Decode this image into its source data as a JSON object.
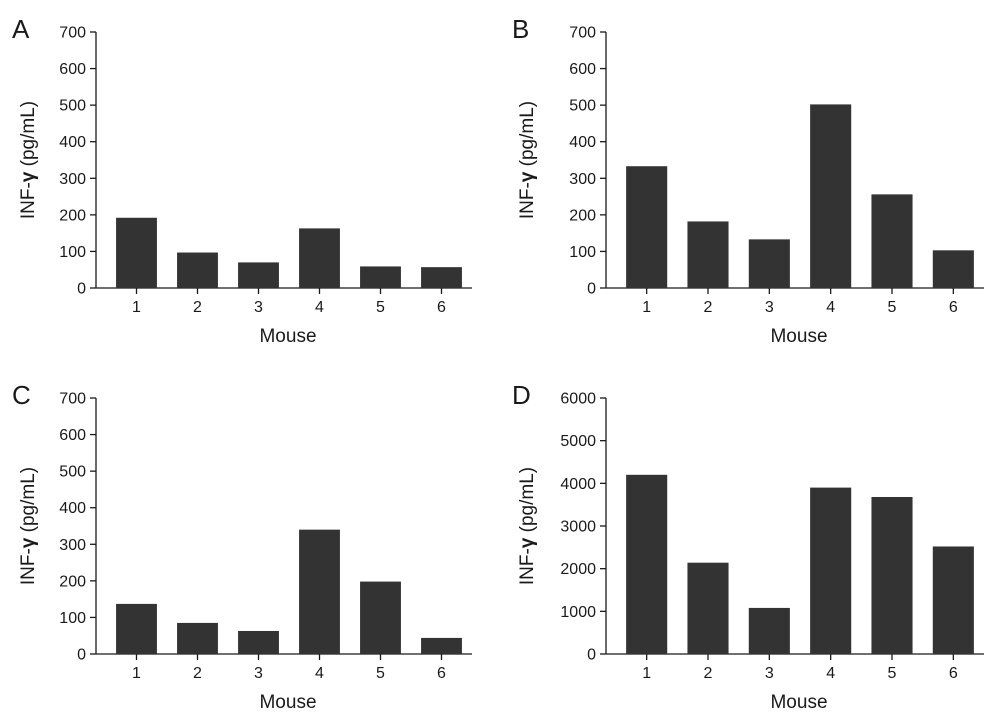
{
  "chart_data": [
    {
      "type": "bar",
      "panel": "A",
      "categories": [
        "1",
        "2",
        "3",
        "4",
        "5",
        "6"
      ],
      "values": [
        192,
        97,
        70,
        163,
        59,
        57
      ],
      "xlabel": "Mouse",
      "ylabel_main": "INF-",
      "ylabel_symbol": "γ",
      "ylabel_unit": " (pg/mL)",
      "ylim": [
        0,
        700
      ],
      "yticks": [
        0,
        100,
        200,
        300,
        400,
        500,
        600,
        700
      ],
      "colors": {
        "bar": "#333333"
      }
    },
    {
      "type": "bar",
      "panel": "B",
      "categories": [
        "1",
        "2",
        "3",
        "4",
        "5",
        "6"
      ],
      "values": [
        333,
        182,
        133,
        502,
        256,
        103
      ],
      "xlabel": "Mouse",
      "ylabel_main": "INF-",
      "ylabel_symbol": "γ",
      "ylabel_unit": " (pg/mL)",
      "ylim": [
        0,
        700
      ],
      "yticks": [
        0,
        100,
        200,
        300,
        400,
        500,
        600,
        700
      ],
      "colors": {
        "bar": "#333333"
      }
    },
    {
      "type": "bar",
      "panel": "C",
      "categories": [
        "1",
        "2",
        "3",
        "4",
        "5",
        "6"
      ],
      "values": [
        137,
        85,
        63,
        340,
        198,
        44
      ],
      "xlabel": "Mouse",
      "ylabel_main": "INF-",
      "ylabel_symbol": "γ",
      "ylabel_unit": " (pg/mL)",
      "ylim": [
        0,
        700
      ],
      "yticks": [
        0,
        100,
        200,
        300,
        400,
        500,
        600,
        700
      ],
      "colors": {
        "bar": "#333333"
      }
    },
    {
      "type": "bar",
      "panel": "D",
      "categories": [
        "1",
        "2",
        "3",
        "4",
        "5",
        "6"
      ],
      "values": [
        4200,
        2140,
        1080,
        3900,
        3680,
        2520
      ],
      "xlabel": "Mouse",
      "ylabel_main": "INF-",
      "ylabel_symbol": "γ",
      "ylabel_unit": " (pg/mL)",
      "ylim": [
        0,
        6000
      ],
      "yticks": [
        0,
        1000,
        2000,
        3000,
        4000,
        5000,
        6000
      ],
      "colors": {
        "bar": "#333333"
      }
    }
  ]
}
